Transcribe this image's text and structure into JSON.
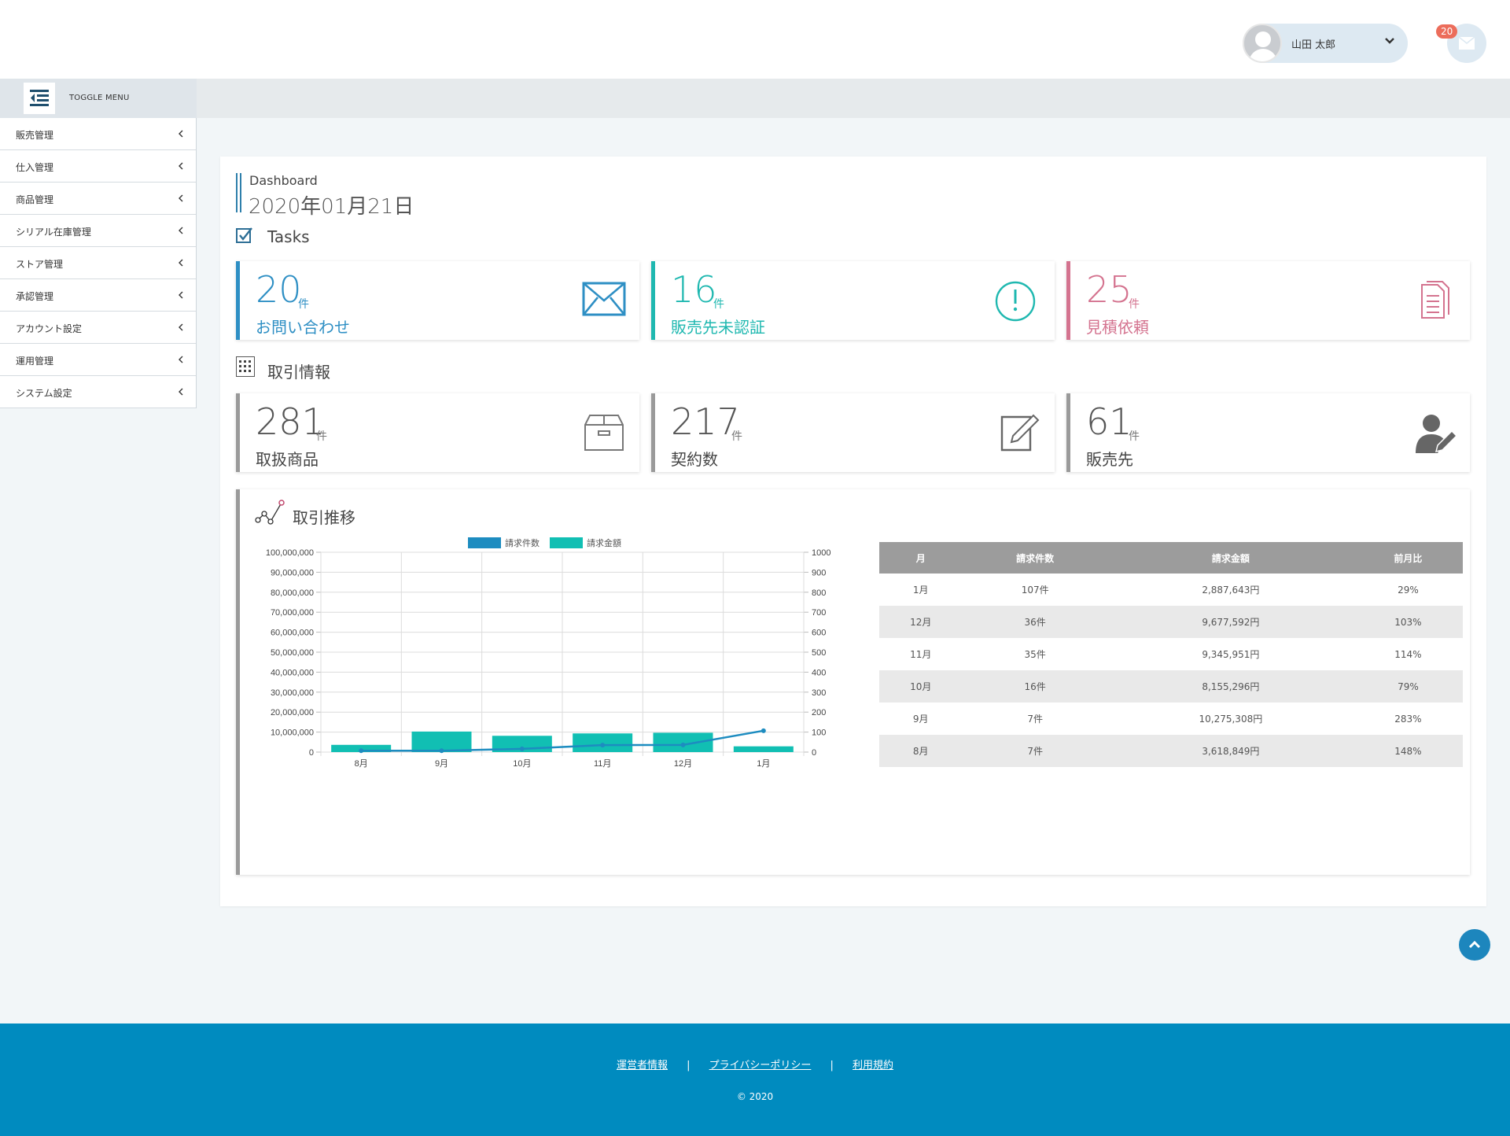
{
  "header": {
    "user_name": "山田 太郎",
    "notification_count": "20"
  },
  "sidebar": {
    "toggle_label": "TOGGLE MENU",
    "items": [
      {
        "label": "販売管理"
      },
      {
        "label": "仕入管理"
      },
      {
        "label": "商品管理"
      },
      {
        "label": "シリアル在庫管理"
      },
      {
        "label": "ストア管理"
      },
      {
        "label": "承認管理"
      },
      {
        "label": "アカウント設定"
      },
      {
        "label": "運用管理"
      },
      {
        "label": "システム設定"
      }
    ]
  },
  "dashboard": {
    "subtitle": "Dashboard",
    "date": "2020年01月21日"
  },
  "tasks": {
    "heading": "Tasks",
    "cards": [
      {
        "value": "20",
        "unit": "件",
        "label": "お問い合わせ",
        "color": "#2e8fc4",
        "icon": "envelope-icon"
      },
      {
        "value": "16",
        "unit": "件",
        "label": "販売先未認証",
        "color": "#1fb8b0",
        "icon": "alert-circle-icon"
      },
      {
        "value": "25",
        "unit": "件",
        "label": "見積依頼",
        "color": "#d4738f",
        "icon": "document-icon"
      }
    ]
  },
  "transactions": {
    "heading": "取引情報",
    "cards": [
      {
        "value": "281",
        "unit": "件",
        "label": "取扱商品",
        "color": "#9a9a9a",
        "icon": "box-icon"
      },
      {
        "value": "217",
        "unit": "件",
        "label": "契約数",
        "color": "#9a9a9a",
        "icon": "edit-icon"
      },
      {
        "value": "61",
        "unit": "件",
        "label": "販売先",
        "color": "#9a9a9a",
        "icon": "user-edit-icon"
      }
    ]
  },
  "trend": {
    "heading": "取引推移"
  },
  "chart_data": {
    "type": "bar",
    "categories": [
      "8月",
      "9月",
      "10月",
      "11月",
      "12月",
      "1月"
    ],
    "series": [
      {
        "name": "請求件数",
        "type": "line",
        "axis": "right",
        "color": "#1d8cc0",
        "values": [
          7,
          7,
          16,
          35,
          36,
          107
        ]
      },
      {
        "name": "請求金額",
        "type": "bar",
        "axis": "left",
        "color": "#11bfb3",
        "values": [
          3618849,
          10275308,
          8155296,
          9345951,
          9677592,
          2887643
        ]
      }
    ],
    "ylim_left": [
      0,
      100000000
    ],
    "ylim_right": [
      0,
      1000
    ],
    "yticks_left": [
      "0",
      "10,000,000",
      "20,000,000",
      "30,000,000",
      "40,000,000",
      "50,000,000",
      "60,000,000",
      "70,000,000",
      "80,000,000",
      "90,000,000",
      "100,000,000"
    ],
    "yticks_right": [
      "0",
      "100",
      "200",
      "300",
      "400",
      "500",
      "600",
      "700",
      "800",
      "900",
      "1000"
    ],
    "legend": "top",
    "grid": true
  },
  "table": {
    "headers": [
      "月",
      "請求件数",
      "請求金額",
      "前月比"
    ],
    "rows": [
      [
        "1月",
        "107件",
        "2,887,643円",
        "29%"
      ],
      [
        "12月",
        "36件",
        "9,677,592円",
        "103%"
      ],
      [
        "11月",
        "35件",
        "9,345,951円",
        "114%"
      ],
      [
        "10月",
        "16件",
        "8,155,296円",
        "79%"
      ],
      [
        "9月",
        "7件",
        "10,275,308円",
        "283%"
      ],
      [
        "8月",
        "7件",
        "3,618,849円",
        "148%"
      ]
    ]
  },
  "footer": {
    "links": [
      "運営者情報",
      "プライバシーポリシー",
      "利用規約"
    ],
    "separator": "|",
    "copyright": "© 2020"
  }
}
